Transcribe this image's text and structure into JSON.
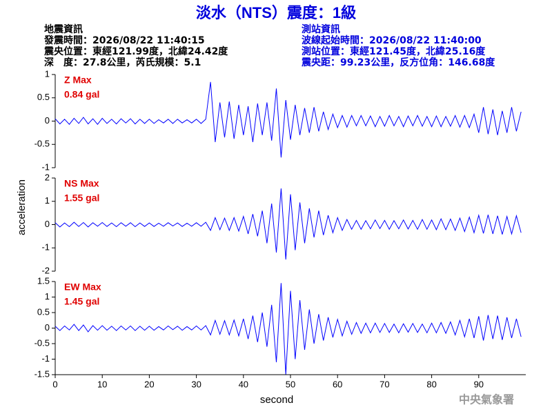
{
  "header": {
    "title": "淡水（NTS）震度：1級",
    "left": [
      "地震資訊",
      "發震時間：2026/08/22 11:40:15",
      "震央位置：東經121.99度，北緯24.42度",
      "深　度：27.8公里，芮氏規模：5.1"
    ],
    "right": [
      "測站資訊",
      "波線起始時間：2026/08/22 11:40:00",
      "測站位置：東經121.45度，北緯25.16度",
      "震央距：99.23公里，反方位角：146.68度"
    ]
  },
  "footer": "中央氣象署",
  "chart_data": [
    {
      "type": "line",
      "label": "Z Max",
      "max_text": "0.84 gal",
      "color": "#0000ff",
      "xlim": [
        0,
        100
      ],
      "ylim": [
        -1,
        1
      ],
      "yticks": [
        -1,
        -0.5,
        0,
        0.5,
        1
      ],
      "x": [
        0,
        1,
        2,
        3,
        4,
        5,
        6,
        7,
        8,
        9,
        10,
        11,
        12,
        13,
        14,
        15,
        16,
        17,
        18,
        19,
        20,
        21,
        22,
        23,
        24,
        25,
        26,
        27,
        28,
        29,
        30,
        31,
        32,
        33,
        34,
        35,
        36,
        37,
        38,
        39,
        40,
        41,
        42,
        43,
        44,
        45,
        46,
        47,
        48,
        49,
        50,
        51,
        52,
        53,
        54,
        55,
        56,
        57,
        58,
        59,
        60,
        61,
        62,
        63,
        64,
        65,
        66,
        67,
        68,
        69,
        70,
        71,
        72,
        73,
        74,
        75,
        76,
        77,
        78,
        79,
        80,
        81,
        82,
        83,
        84,
        85,
        86,
        87,
        88,
        89,
        90,
        91,
        92,
        93,
        94,
        95,
        96,
        97,
        98,
        99
      ],
      "values": [
        0.05,
        -0.06,
        0.04,
        -0.07,
        0.06,
        -0.05,
        0.08,
        -0.06,
        0.05,
        -0.07,
        0.06,
        -0.05,
        0.04,
        -0.06,
        0.05,
        -0.04,
        0.05,
        -0.06,
        0.04,
        -0.05,
        0.04,
        -0.05,
        0.03,
        -0.04,
        0.04,
        -0.05,
        0.04,
        -0.04,
        0.03,
        -0.04,
        0.04,
        -0.05,
        0.04,
        0.84,
        -0.45,
        0.4,
        -0.35,
        0.42,
        -0.38,
        0.35,
        -0.3,
        0.32,
        -0.45,
        0.38,
        -0.3,
        0.4,
        -0.42,
        0.7,
        -0.78,
        0.45,
        -0.4,
        0.35,
        -0.3,
        0.28,
        -0.25,
        0.3,
        -0.22,
        0.2,
        -0.18,
        0.15,
        -0.14,
        0.12,
        -0.13,
        0.12,
        -0.1,
        0.12,
        -0.1,
        0.11,
        -0.12,
        0.1,
        -0.11,
        0.12,
        -0.1,
        0.1,
        -0.12,
        0.11,
        -0.1,
        0.12,
        -0.11,
        0.1,
        -0.12,
        0.11,
        -0.12,
        0.1,
        -0.11,
        0.12,
        -0.13,
        0.12,
        -0.14,
        0.15,
        -0.25,
        0.3,
        -0.28,
        0.25,
        -0.3,
        0.22,
        -0.25,
        0.3,
        -0.22,
        0.2
      ]
    },
    {
      "type": "line",
      "label": "NS Max",
      "max_text": "1.55 gal",
      "ylabel": "acceleration",
      "color": "#0000ff",
      "xlim": [
        0,
        100
      ],
      "ylim": [
        -2,
        2
      ],
      "yticks": [
        -2,
        -1,
        0,
        1,
        2
      ],
      "x": [
        0,
        1,
        2,
        3,
        4,
        5,
        6,
        7,
        8,
        9,
        10,
        11,
        12,
        13,
        14,
        15,
        16,
        17,
        18,
        19,
        20,
        21,
        22,
        23,
        24,
        25,
        26,
        27,
        28,
        29,
        30,
        31,
        32,
        33,
        34,
        35,
        36,
        37,
        38,
        39,
        40,
        41,
        42,
        43,
        44,
        45,
        46,
        47,
        48,
        49,
        50,
        51,
        52,
        53,
        54,
        55,
        56,
        57,
        58,
        59,
        60,
        61,
        62,
        63,
        64,
        65,
        66,
        67,
        68,
        69,
        70,
        71,
        72,
        73,
        74,
        75,
        76,
        77,
        78,
        79,
        80,
        81,
        82,
        83,
        84,
        85,
        86,
        87,
        88,
        89,
        90,
        91,
        92,
        93,
        94,
        95,
        96,
        97,
        98,
        99
      ],
      "values": [
        0.08,
        -0.1,
        0.07,
        -0.09,
        0.1,
        -0.08,
        0.09,
        -0.1,
        0.08,
        -0.07,
        0.09,
        -0.08,
        0.07,
        -0.09,
        0.08,
        -0.07,
        0.08,
        -0.09,
        0.07,
        -0.08,
        0.07,
        -0.08,
        0.06,
        -0.07,
        0.08,
        -0.06,
        0.07,
        -0.08,
        0.06,
        -0.07,
        0.08,
        -0.07,
        0.1,
        -0.25,
        0.3,
        -0.22,
        0.28,
        -0.25,
        0.3,
        -0.28,
        0.35,
        -0.4,
        0.45,
        -0.5,
        0.6,
        -0.8,
        0.9,
        -1.2,
        1.55,
        -1.5,
        1.3,
        -1.1,
        0.95,
        -0.8,
        0.7,
        -0.55,
        0.6,
        -0.45,
        0.4,
        -0.35,
        0.3,
        -0.25,
        0.22,
        -0.2,
        0.18,
        -0.2,
        0.17,
        -0.18,
        0.2,
        -0.17,
        0.18,
        -0.2,
        0.17,
        -0.18,
        0.2,
        -0.19,
        0.18,
        -0.2,
        0.22,
        -0.2,
        0.2,
        -0.22,
        0.25,
        -0.22,
        0.24,
        -0.25,
        0.28,
        -0.3,
        0.32,
        -0.35,
        0.4,
        -0.38,
        0.42,
        -0.4,
        0.38,
        -0.42,
        0.35,
        -0.4,
        0.38,
        -0.35
      ]
    },
    {
      "type": "line",
      "label": "EW Max",
      "max_text": "1.45 gal",
      "xlabel": "second",
      "color": "#0000ff",
      "xlim": [
        0,
        100
      ],
      "xticks": [
        0,
        10,
        20,
        30,
        40,
        50,
        60,
        70,
        80,
        90
      ],
      "ylim": [
        -1.5,
        1.5
      ],
      "yticks": [
        -1.5,
        -1,
        -0.5,
        0,
        0.5,
        1,
        1.5
      ],
      "x": [
        0,
        1,
        2,
        3,
        4,
        5,
        6,
        7,
        8,
        9,
        10,
        11,
        12,
        13,
        14,
        15,
        16,
        17,
        18,
        19,
        20,
        21,
        22,
        23,
        24,
        25,
        26,
        27,
        28,
        29,
        30,
        31,
        32,
        33,
        34,
        35,
        36,
        37,
        38,
        39,
        40,
        41,
        42,
        43,
        44,
        45,
        46,
        47,
        48,
        49,
        50,
        51,
        52,
        53,
        54,
        55,
        56,
        57,
        58,
        59,
        60,
        61,
        62,
        63,
        64,
        65,
        66,
        67,
        68,
        69,
        70,
        71,
        72,
        73,
        74,
        75,
        76,
        77,
        78,
        79,
        80,
        81,
        82,
        83,
        84,
        85,
        86,
        87,
        88,
        89,
        90,
        91,
        92,
        93,
        94,
        95,
        96,
        97,
        98,
        99
      ],
      "values": [
        0.06,
        -0.08,
        0.07,
        -0.06,
        0.12,
        -0.08,
        0.1,
        -0.12,
        0.08,
        -0.07,
        0.08,
        -0.07,
        0.06,
        -0.08,
        0.07,
        -0.06,
        0.07,
        -0.08,
        0.06,
        -0.07,
        0.06,
        -0.07,
        0.05,
        -0.06,
        0.07,
        -0.05,
        0.06,
        -0.07,
        0.05,
        -0.06,
        0.07,
        -0.06,
        0.08,
        -0.22,
        0.25,
        -0.2,
        0.24,
        -0.22,
        0.26,
        -0.25,
        0.3,
        -0.35,
        0.4,
        -0.45,
        0.5,
        -0.6,
        0.75,
        -1.1,
        1.45,
        -1.5,
        1.2,
        -1.0,
        0.9,
        -0.7,
        0.6,
        -0.5,
        0.45,
        -0.4,
        0.35,
        -0.3,
        0.28,
        -0.25,
        0.22,
        -0.2,
        0.18,
        -0.17,
        0.16,
        -0.15,
        0.16,
        -0.14,
        0.15,
        -0.14,
        0.13,
        -0.15,
        0.14,
        -0.13,
        0.15,
        -0.14,
        0.13,
        -0.15,
        0.16,
        -0.15,
        0.18,
        -0.17,
        0.2,
        -0.22,
        0.25,
        -0.28,
        0.3,
        -0.32,
        0.38,
        -0.4,
        0.42,
        -0.35,
        0.4,
        -0.38,
        0.35,
        -0.32,
        0.3,
        -0.28
      ]
    }
  ]
}
